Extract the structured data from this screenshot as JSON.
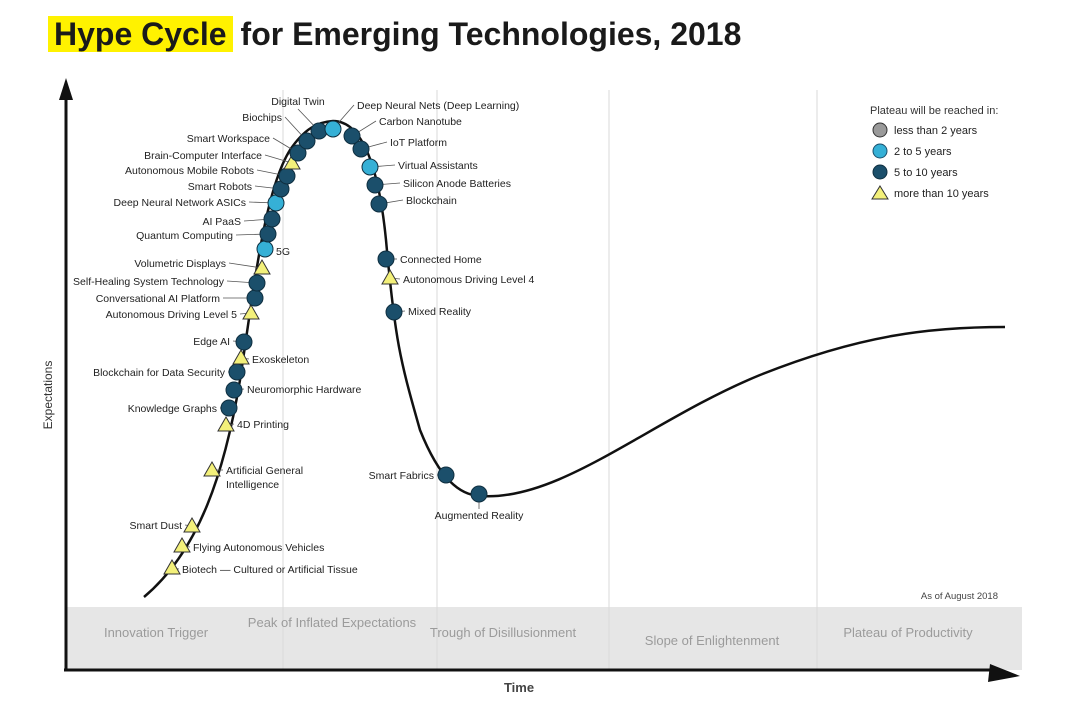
{
  "title": {
    "highlight": "Hype Cycle",
    "rest": "for Emerging Technologies, 2018"
  },
  "axes": {
    "y_label": "Expectations",
    "x_label": "Time"
  },
  "as_of": "As of August 2018",
  "phases": [
    "Innovation Trigger",
    "Peak of Inflated Expectations",
    "Trough of Disillusionment",
    "Slope of Enlightenment",
    "Plateau of Productivity"
  ],
  "legend": {
    "title": "Plateau will be reached in:",
    "items": [
      {
        "label": "less than 2 years",
        "color": "#9a9a9a",
        "shape": "circle"
      },
      {
        "label": "2 to 5 years",
        "color": "#35b0d6",
        "shape": "circle"
      },
      {
        "label": "5 to 10 years",
        "color": "#1b4f6b",
        "shape": "circle"
      },
      {
        "label": "more than 10 years",
        "color": "#f3f07a",
        "shape": "triangle"
      }
    ]
  },
  "technologies": [
    {
      "name": "Biotech — Cultured or Artificial Tissue",
      "plateau": "more than 10 years"
    },
    {
      "name": "Flying Autonomous Vehicles",
      "plateau": "more than 10 years"
    },
    {
      "name": "Smart Dust",
      "plateau": "more than 10 years"
    },
    {
      "name": "Artificial General Intelligence",
      "plateau": "more than 10 years"
    },
    {
      "name": "4D Printing",
      "plateau": "more than 10 years"
    },
    {
      "name": "Knowledge Graphs",
      "plateau": "5 to 10 years"
    },
    {
      "name": "Neuromorphic Hardware",
      "plateau": "5 to 10 years"
    },
    {
      "name": "Blockchain for Data Security",
      "plateau": "5 to 10 years"
    },
    {
      "name": "Exoskeleton",
      "plateau": "more than 10 years"
    },
    {
      "name": "Edge AI",
      "plateau": "5 to 10 years"
    },
    {
      "name": "Autonomous Driving Level 5",
      "plateau": "more than 10 years"
    },
    {
      "name": "Conversational AI Platform",
      "plateau": "5 to 10 years"
    },
    {
      "name": "Self-Healing System Technology",
      "plateau": "5 to 10 years"
    },
    {
      "name": "Volumetric Displays",
      "plateau": "more than 10 years"
    },
    {
      "name": "5G",
      "plateau": "2 to 5 years"
    },
    {
      "name": "Quantum Computing",
      "plateau": "5 to 10 years"
    },
    {
      "name": "AI PaaS",
      "plateau": "5 to 10 years"
    },
    {
      "name": "Deep Neural Network ASICs",
      "plateau": "2 to 5 years"
    },
    {
      "name": "Smart Robots",
      "plateau": "5 to 10 years"
    },
    {
      "name": "Autonomous Mobile Robots",
      "plateau": "5 to 10 years"
    },
    {
      "name": "Brain-Computer Interface",
      "plateau": "more than 10 years"
    },
    {
      "name": "Smart Workspace",
      "plateau": "5 to 10 years"
    },
    {
      "name": "Biochips",
      "plateau": "5 to 10 years"
    },
    {
      "name": "Digital Twin",
      "plateau": "5 to 10 years"
    },
    {
      "name": "Deep Neural Nets (Deep Learning)",
      "plateau": "2 to 5 years"
    },
    {
      "name": "Carbon Nanotube",
      "plateau": "5 to 10 years"
    },
    {
      "name": "IoT Platform",
      "plateau": "5 to 10 years"
    },
    {
      "name": "Virtual Assistants",
      "plateau": "2 to 5 years"
    },
    {
      "name": "Silicon Anode Batteries",
      "plateau": "5 to 10 years"
    },
    {
      "name": "Blockchain",
      "plateau": "5 to 10 years"
    },
    {
      "name": "Connected Home",
      "plateau": "5 to 10 years"
    },
    {
      "name": "Autonomous Driving Level 4",
      "plateau": "more than 10 years"
    },
    {
      "name": "Mixed Reality",
      "plateau": "5 to 10 years"
    },
    {
      "name": "Smart Fabrics",
      "plateau": "5 to 10 years"
    },
    {
      "name": "Augmented Reality",
      "plateau": "5 to 10 years"
    }
  ]
}
